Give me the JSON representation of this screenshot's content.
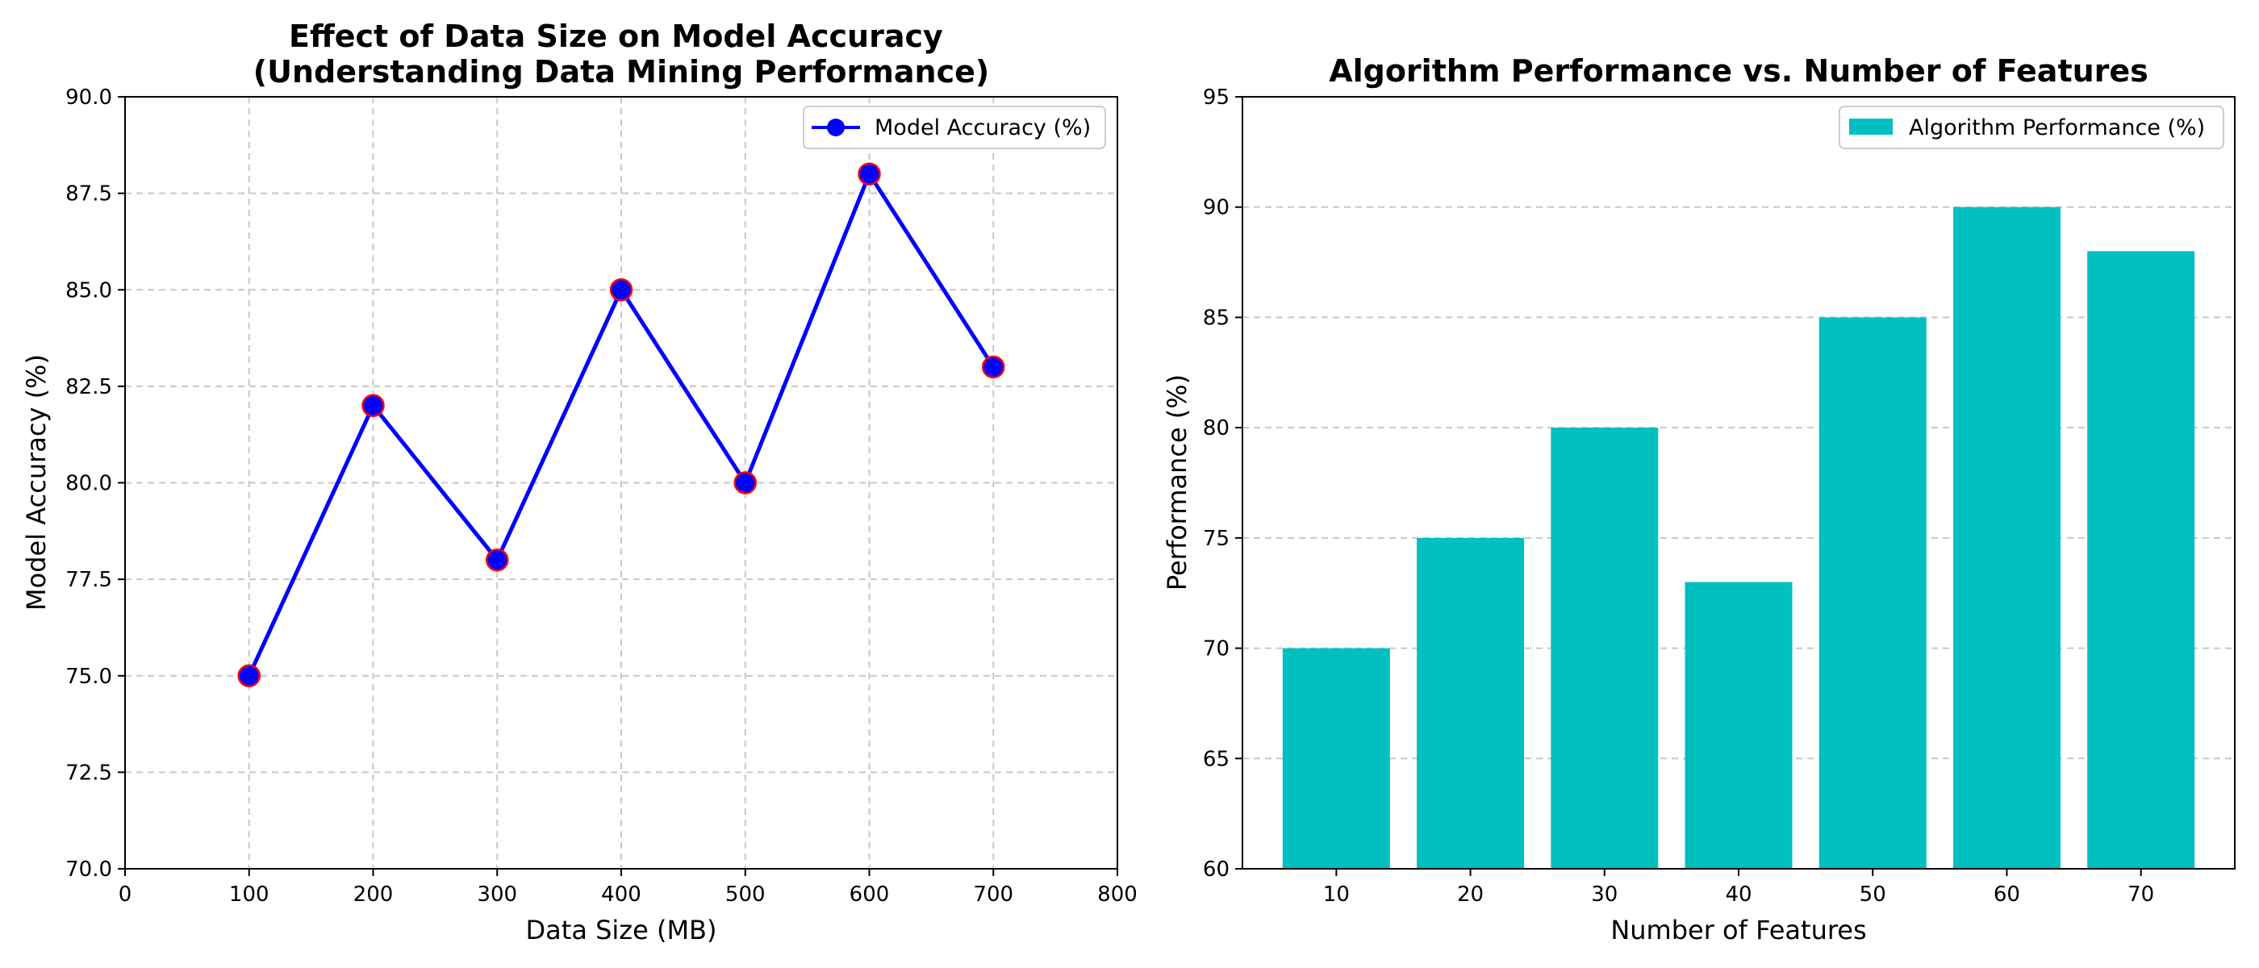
{
  "colors": {
    "line": "#0000ff",
    "marker_face": "#0000ff",
    "marker_edge": "#ff0000",
    "bar": "#00bfbf",
    "grid": "#c8c8c8",
    "axis": "#000000",
    "background": "#ffffff"
  },
  "chart_data": [
    {
      "type": "line",
      "title": "Effect of Data Size on Model Accuracy\n(Understanding Data Mining Performance)",
      "xlabel": "Data Size (MB)",
      "ylabel": "Model Accuracy (%)",
      "x": [
        100,
        200,
        300,
        400,
        500,
        600,
        700
      ],
      "series": [
        {
          "name": "Model Accuracy (%)",
          "values": [
            75,
            82,
            78,
            85,
            80,
            88,
            83
          ]
        }
      ],
      "xlim": [
        0,
        800
      ],
      "ylim": [
        70,
        90
      ],
      "xticks": [
        0,
        100,
        200,
        300,
        400,
        500,
        600,
        700,
        800
      ],
      "yticks": [
        70.0,
        72.5,
        75.0,
        77.5,
        80.0,
        82.5,
        85.0,
        87.5,
        90.0
      ],
      "xtick_labels": [
        "0",
        "100",
        "200",
        "300",
        "400",
        "500",
        "600",
        "700",
        "800"
      ],
      "ytick_labels": [
        "70.0",
        "72.5",
        "75.0",
        "77.5",
        "80.0",
        "82.5",
        "85.0",
        "87.5",
        "90.0"
      ],
      "grid": true,
      "grid_style": "dashed",
      "legend_position": "upper right"
    },
    {
      "type": "bar",
      "title": "Algorithm Performance vs. Number of Features",
      "xlabel": "Number of Features",
      "ylabel": "Performance (%)",
      "categories": [
        "10",
        "20",
        "30",
        "40",
        "50",
        "60",
        "70"
      ],
      "series": [
        {
          "name": "Algorithm Performance (%)",
          "values": [
            70,
            75,
            80,
            73,
            85,
            90,
            88
          ]
        }
      ],
      "ylim": [
        60,
        95
      ],
      "yticks": [
        60,
        65,
        70,
        75,
        80,
        85,
        90,
        95
      ],
      "ytick_labels": [
        "60",
        "65",
        "70",
        "75",
        "80",
        "85",
        "90",
        "95"
      ],
      "grid": true,
      "grid_axis": "y",
      "grid_style": "dashed",
      "legend_position": "upper right"
    }
  ]
}
